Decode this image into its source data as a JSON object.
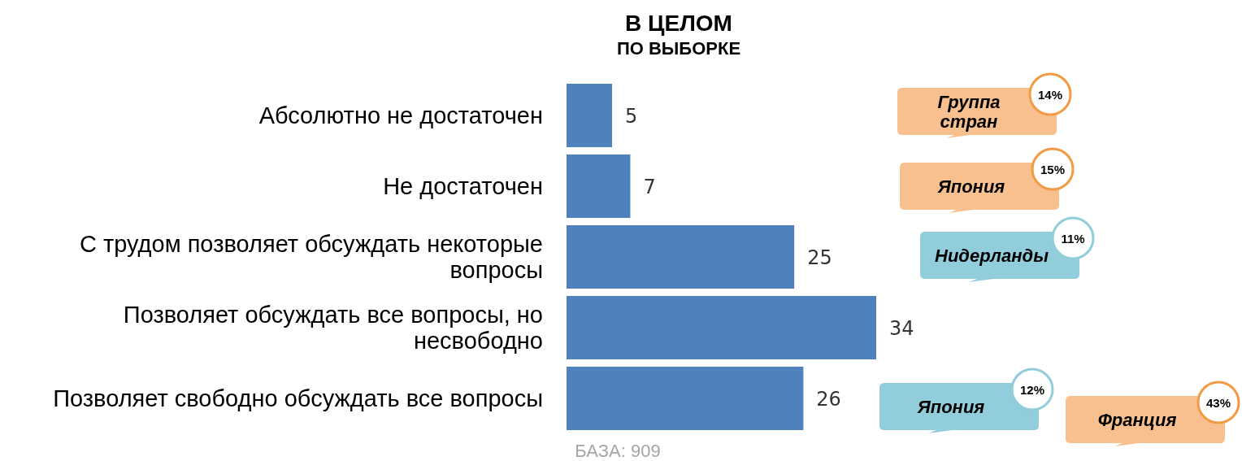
{
  "chart_data": {
    "type": "bar",
    "orientation": "horizontal",
    "title": "В ЦЕЛОМ",
    "subtitle": "ПО ВЫБОРКЕ",
    "categories": [
      "Абсолютно не достаточен",
      "Не достаточен",
      "С трудом позволяет обсуждать некоторые вопросы",
      "Позволяет обсуждать все вопросы, но несвободно",
      "Позволяет свободно обсуждать все вопросы"
    ],
    "values": [
      5,
      7,
      25,
      34,
      26
    ],
    "color": "#4f81bd",
    "data_labels": true,
    "annotations": [
      "Группа стран",
      "14%",
      "Япония",
      "15%",
      "Нидерланды",
      "11%",
      "Япония",
      "12%",
      "Франция",
      "43%",
      "БАЗА: 909"
    ]
  }
}
